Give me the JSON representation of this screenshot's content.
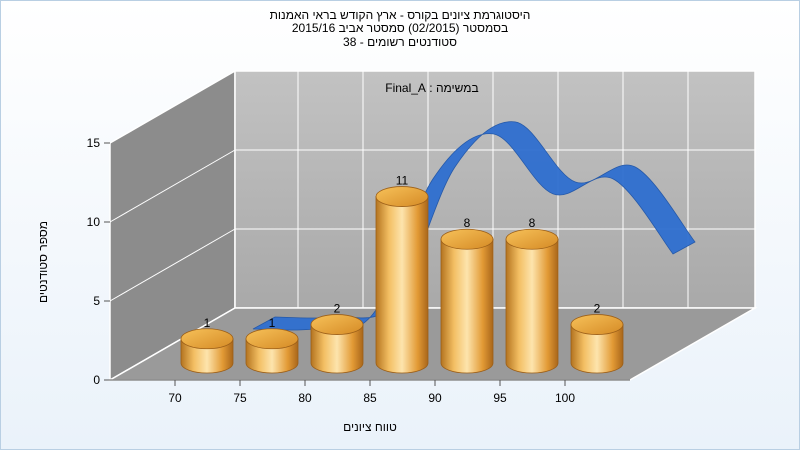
{
  "chart_data": {
    "type": "bar",
    "title_lines": [
      "היסטוגרמת ציונים בקורס - ארץ הקודש בראי האמנות",
      "בסמסטר  (02/2015)  סמסטר אביב 2015/16",
      "סטודנטים רשומים - 38"
    ],
    "subtitle": "במשימה : Final_A",
    "categories": [
      "70",
      "75",
      "80",
      "85",
      "90",
      "95",
      "100"
    ],
    "values": [
      1,
      1,
      2,
      11,
      8,
      8,
      2
    ],
    "data_labels": [
      "1",
      "1",
      "2",
      "11",
      "8",
      "8",
      "2"
    ],
    "curve_series": [
      1,
      1,
      2,
      11,
      14,
      10,
      11,
      6
    ],
    "xlabel": "טווח ציונים",
    "ylabel": "מספר סטודנטים",
    "ylim": [
      0,
      15
    ],
    "yticks": [
      "0",
      "5",
      "10",
      "15"
    ],
    "grid": true,
    "colors": {
      "bar": "#e8a23c",
      "bar_light": "#fbe0a8",
      "bar_dark": "#b06f1c",
      "curve": "#2f6fd0",
      "back_wall": "#b5b5b5",
      "side_wall": "#8a8a8a",
      "floor": "#9a9a9a"
    }
  }
}
